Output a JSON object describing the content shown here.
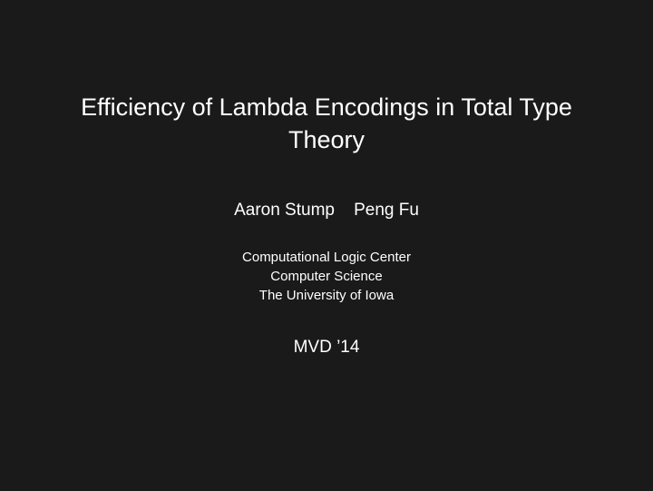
{
  "slide": {
    "background_color": "#1a1a1a",
    "text_color": "#ffffff",
    "title": "Efficiency of Lambda Encodings in Total Type Theory",
    "title_fontsize": 27,
    "authors": "Aaron Stump    Peng Fu",
    "authors_fontsize": 19,
    "affiliation_line1": "Computational Logic Center",
    "affiliation_line2": "Computer Science",
    "affiliation_line3": "The University of Iowa",
    "affiliation_fontsize": 15,
    "venue": "MVD ’14",
    "venue_fontsize": 19
  }
}
